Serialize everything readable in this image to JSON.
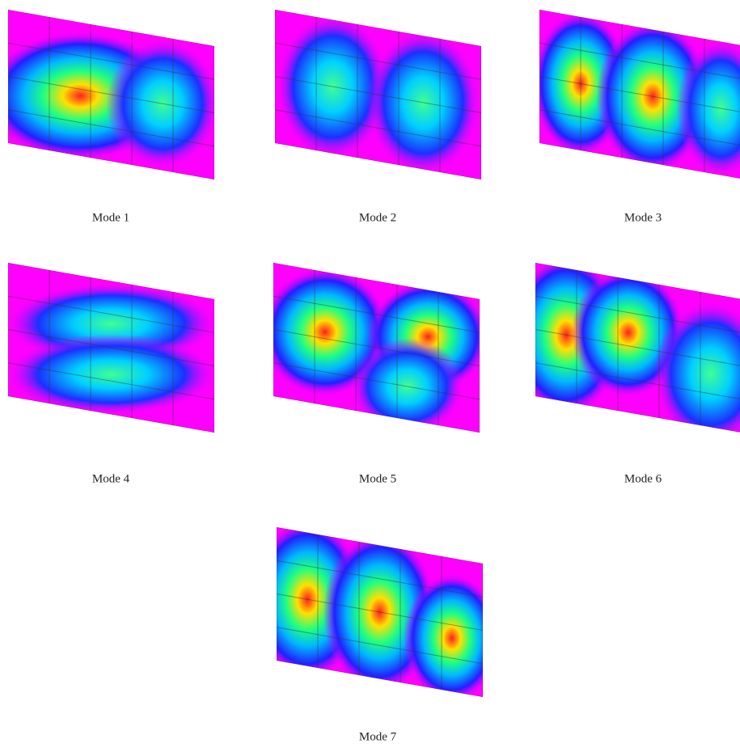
{
  "panels": [
    {
      "label": "Mode 1"
    },
    {
      "label": "Mode 2"
    },
    {
      "label": "Mode 3"
    },
    {
      "label": "Mode 4"
    },
    {
      "label": "Mode 5"
    },
    {
      "label": "Mode 6"
    },
    {
      "label": "Mode 7"
    }
  ]
}
